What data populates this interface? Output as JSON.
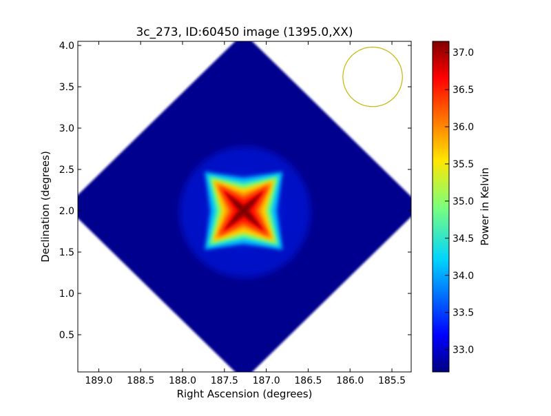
{
  "chart_data": {
    "type": "heatmap",
    "title": "3c_273, ID:60450 image (1395.0,XX)",
    "xlabel": "Right Ascension (degrees)",
    "ylabel": "Declination (degrees)",
    "xlim": [
      189.25,
      185.27
    ],
    "ylim": [
      0.05,
      4.05
    ],
    "x_ticks": [
      "189.0",
      "188.5",
      "188.0",
      "187.5",
      "187.0",
      "186.5",
      "186.0",
      "185.5"
    ],
    "x_tick_values": [
      189.0,
      188.5,
      188.0,
      187.5,
      187.0,
      186.5,
      186.0,
      185.5
    ],
    "y_ticks": [
      "0.5",
      "1.0",
      "1.5",
      "2.0",
      "2.5",
      "3.0",
      "3.5",
      "4.0"
    ],
    "y_tick_values": [
      0.5,
      1.0,
      1.5,
      2.0,
      2.5,
      3.0,
      3.5,
      4.0
    ],
    "colormap": "jet",
    "colorbar": {
      "label": "Power in Kelvin",
      "range": [
        32.7,
        37.15
      ],
      "ticks": [
        "33.0",
        "33.5",
        "34.0",
        "34.5",
        "35.0",
        "35.5",
        "36.0",
        "36.5",
        "37.0"
      ],
      "tick_values": [
        33.0,
        33.5,
        34.0,
        34.5,
        35.0,
        35.5,
        36.0,
        36.5,
        37.0
      ]
    },
    "image_region": {
      "shape": "diamond",
      "center": [
        187.27,
        2.05
      ],
      "ra_half_width": 1.97,
      "dec_half_height": 1.95
    },
    "source": {
      "center": [
        187.27,
        2.0
      ],
      "peak_kelvin": 37.1,
      "background_kelvin": 32.9
    },
    "beam": {
      "center": [
        185.73,
        3.62
      ],
      "radius_dec_degrees": 0.36,
      "color": "#c8b400"
    },
    "grid": false
  }
}
